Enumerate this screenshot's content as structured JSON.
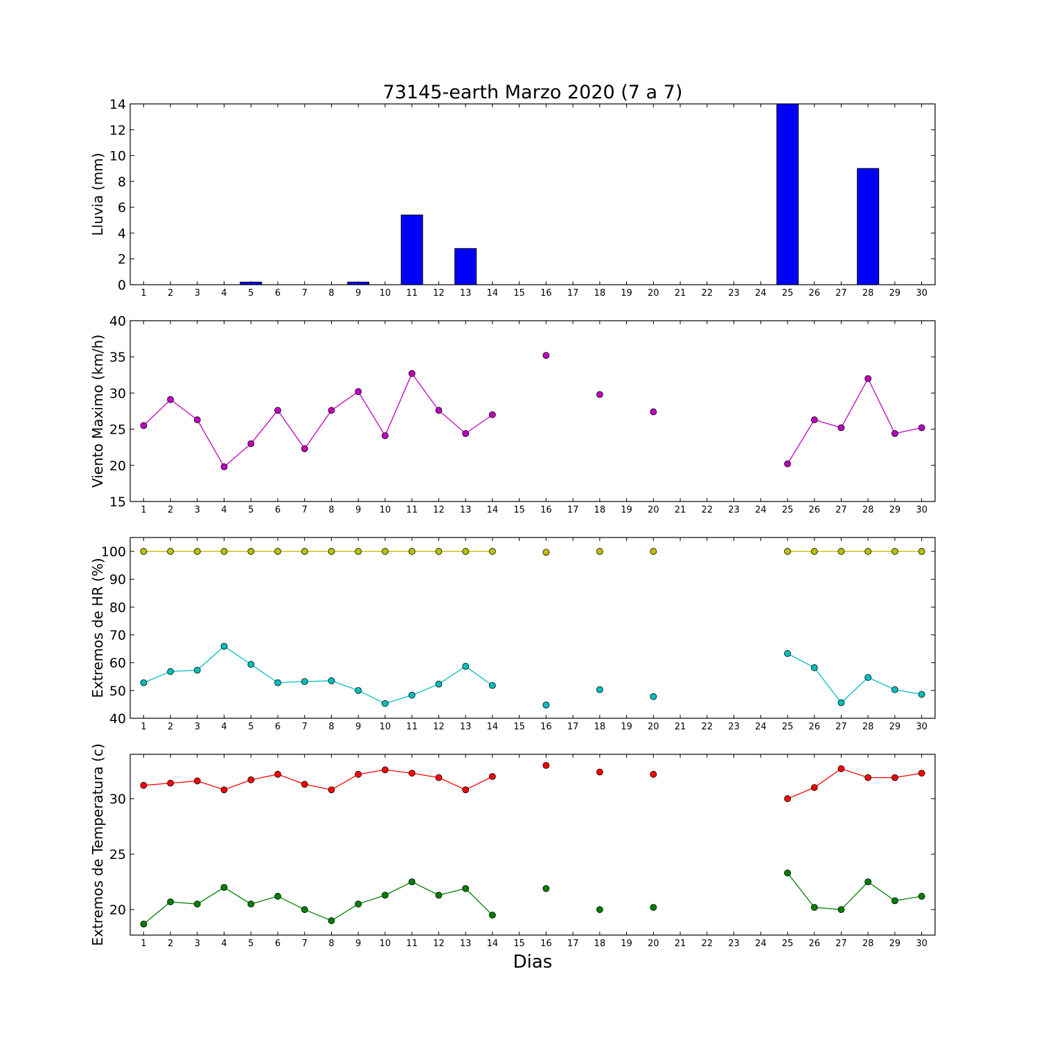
{
  "chart_data": {
    "title": "73145-earth Marzo 2020  (7 a 7)",
    "xlabel": "Dias",
    "x": [
      1,
      2,
      3,
      4,
      5,
      6,
      7,
      8,
      9,
      10,
      11,
      12,
      13,
      14,
      15,
      16,
      17,
      18,
      19,
      20,
      21,
      22,
      23,
      24,
      25,
      26,
      27,
      28,
      29,
      30
    ],
    "panels": [
      {
        "type": "bar",
        "ylabel": "Lluvia (mm)",
        "ylim": [
          0,
          14
        ],
        "yticks": [
          0,
          2,
          4,
          6,
          8,
          10,
          12,
          14
        ],
        "series": [
          {
            "color": "#0000ff",
            "values": [
              0,
              0,
              0,
              0,
              0.2,
              0,
              0,
              0,
              0.2,
              0,
              5.4,
              0,
              2.8,
              0,
              0,
              0,
              0,
              0,
              0,
              0,
              0,
              0,
              0,
              0,
              14,
              0,
              0,
              9,
              0,
              0
            ]
          }
        ]
      },
      {
        "type": "line",
        "ylabel": "Viento Maximo (km/h)",
        "ylim": [
          15,
          40
        ],
        "yticks": [
          15,
          20,
          25,
          30,
          35,
          40
        ],
        "series": [
          {
            "color": "#bf00bf",
            "values": [
              25.5,
              29.1,
              26.3,
              19.8,
              23.0,
              27.6,
              22.3,
              27.6,
              30.2,
              24.1,
              32.7,
              27.6,
              24.4,
              27.0,
              null,
              35.2,
              null,
              29.8,
              null,
              27.4,
              null,
              null,
              null,
              null,
              20.2,
              26.3,
              25.2,
              32.0,
              24.4,
              25.2
            ]
          }
        ]
      },
      {
        "type": "line",
        "ylabel": "Extremos de HR (%)",
        "ylim": [
          40,
          105
        ],
        "yticks": [
          40,
          50,
          60,
          70,
          80,
          90,
          100
        ],
        "series": [
          {
            "color": "#bfbf00",
            "values": [
              100,
              100,
              100,
              100,
              100,
              100,
              100,
              100,
              100,
              100,
              100,
              100,
              100,
              100,
              null,
              99.7,
              null,
              100,
              null,
              100,
              null,
              null,
              null,
              null,
              100,
              100,
              100,
              100,
              100,
              100
            ]
          },
          {
            "color": "#00bfbf",
            "values": [
              52.8,
              56.8,
              57.3,
              65.9,
              59.4,
              52.8,
              53.2,
              53.5,
              50.0,
              45.3,
              48.3,
              52.3,
              58.7,
              51.8,
              null,
              44.8,
              null,
              50.3,
              null,
              47.8,
              null,
              null,
              null,
              null,
              63.3,
              58.2,
              45.6,
              54.7,
              50.3,
              48.6
            ]
          }
        ]
      },
      {
        "type": "line",
        "ylabel": "Extremos de Temperatura (c)",
        "ylim": [
          17.7,
          34
        ],
        "yticks": [
          20,
          25,
          30
        ],
        "series": [
          {
            "color": "#ff0000",
            "values": [
              31.2,
              31.4,
              31.6,
              30.8,
              31.7,
              32.2,
              31.3,
              30.8,
              32.2,
              32.6,
              32.3,
              31.9,
              30.8,
              32.0,
              null,
              33.0,
              null,
              32.4,
              null,
              32.2,
              null,
              null,
              null,
              null,
              30.0,
              31.0,
              32.7,
              31.9,
              31.9,
              32.3
            ]
          },
          {
            "color": "#008000",
            "values": [
              18.7,
              20.7,
              20.5,
              22.0,
              20.5,
              21.2,
              20.0,
              19.0,
              20.5,
              21.3,
              22.5,
              21.3,
              21.9,
              19.5,
              null,
              21.9,
              null,
              20.0,
              null,
              20.2,
              null,
              null,
              null,
              null,
              23.3,
              20.2,
              20.0,
              22.5,
              20.8,
              21.2
            ]
          }
        ]
      }
    ]
  }
}
